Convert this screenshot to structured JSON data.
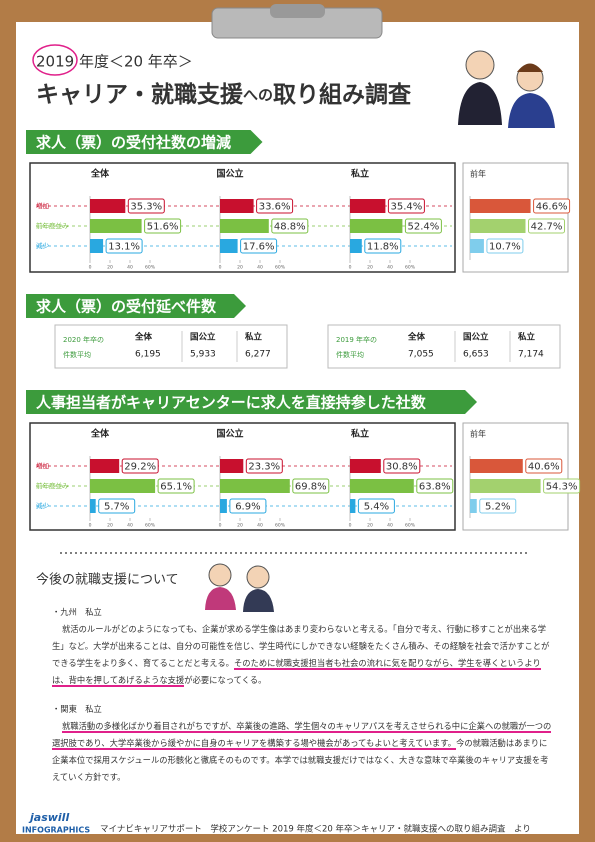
{
  "header": {
    "year": "2019 年度＜20 年卒＞",
    "title_parts": [
      "キャリア・就職支援",
      "への",
      "取り組み調査"
    ]
  },
  "section1": {
    "type": "bar",
    "title": "求人（票）の受付社数の増減",
    "row_labels": [
      "増加",
      "前年度並み",
      "減少"
    ],
    "colors": [
      "#c8102e",
      "#7bc043",
      "#29a8e0"
    ],
    "xlim": [
      0,
      60
    ],
    "xticks": [
      0,
      20,
      40,
      {
        "value": 60,
        "label": "60%"
      }
    ],
    "groups": [
      {
        "name": "全体",
        "values": [
          35.3,
          51.6,
          13.1
        ],
        "value_labels": [
          "35.3%",
          "51.6%",
          "13.1%"
        ]
      },
      {
        "name": "国公立",
        "values": [
          33.6,
          48.8,
          17.6
        ],
        "value_labels": [
          "33.6%",
          "48.8%",
          "17.6%"
        ]
      },
      {
        "name": "私立",
        "values": [
          35.4,
          52.4,
          11.8
        ],
        "value_labels": [
          "35.4%",
          "52.4%",
          "11.8%"
        ]
      }
    ],
    "previous": {
      "name": "前年",
      "colors": [
        "#d9573a",
        "#a3d16e",
        "#7fcdec"
      ],
      "values": [
        46.6,
        42.7,
        10.7
      ],
      "value_labels": [
        "46.6%",
        "42.7%",
        "10.7%"
      ]
    }
  },
  "section2": {
    "title": "求人（票）の受付延べ件数",
    "tables": [
      {
        "label": [
          "2020 年卒の",
          "件数平均"
        ],
        "columns": [
          "全体",
          "国公立",
          "私立"
        ],
        "cells": [
          "6,195",
          "5,933",
          "6,277"
        ]
      },
      {
        "label": [
          "2019 年卒の",
          "件数平均"
        ],
        "columns": [
          "全体",
          "国公立",
          "私立"
        ],
        "cells": [
          "7,055",
          "6,653",
          "7,174"
        ]
      }
    ]
  },
  "section3": {
    "type": "bar",
    "title": "人事担当者がキャリアセンターに求人を直接持参した社数",
    "row_labels": [
      "増加",
      "前年度並み",
      "減少"
    ],
    "colors": [
      "#c8102e",
      "#7bc043",
      "#29a8e0"
    ],
    "xlim": [
      0,
      60
    ],
    "xticks": [
      0,
      20,
      40,
      {
        "value": 60,
        "label": "60%"
      }
    ],
    "groups": [
      {
        "name": "全体",
        "values": [
          29.2,
          65.1,
          5.7
        ],
        "value_labels": [
          "29.2%",
          "65.1%",
          "5.7%"
        ]
      },
      {
        "name": "国公立",
        "values": [
          23.3,
          69.8,
          6.9
        ],
        "value_labels": [
          "23.3%",
          "69.8%",
          "6.9%"
        ]
      },
      {
        "name": "私立",
        "values": [
          30.8,
          63.8,
          5.4
        ],
        "value_labels": [
          "30.8%",
          "63.8%",
          "5.4%"
        ]
      }
    ],
    "previous": {
      "name": "前年",
      "colors": [
        "#d9573a",
        "#a3d16e",
        "#7fcdec"
      ],
      "values": [
        40.6,
        54.3,
        5.2
      ],
      "value_labels": [
        "40.6%",
        "54.3%",
        "5.2%"
      ]
    }
  },
  "section4": {
    "title": "今後の就職支援について",
    "comments": [
      {
        "heading": "・九州　私立",
        "segments": [
          {
            "text": "就活のルールがどのようになっても、企業が求める学生像はあまり変わらないと考える。「自分で考え、行動に移すことが出来る学生」など。大学が出来ることは、自分の可能性を信じ、学生時代にしかできない経験をたくさん積み、その経験を社会で活かすことができる学生をより多く、育てることだと考える。",
            "highlight": false
          },
          {
            "text": "そのために就職支援担当者も社会の流れに気を配りながら、学生を導くというよりは、背中を押してあげるような支援",
            "highlight": true
          },
          {
            "text": "が必要になってくる。",
            "highlight": false
          }
        ]
      },
      {
        "heading": "・関東　私立",
        "segments": [
          {
            "text": "就職活動の多様化ばかり着目されがちですが、卒業後の進路、学生個々のキャリアパスを考えさせられる中に企業への就職が一つの選択肢であり、大学卒業後から緩やかに自身のキャリアを構築する場や機会があってもよいと考えています。",
            "highlight": true
          },
          {
            "text": "今の就職活動はあまりに企業本位で採用スケジュールの形骸化と徹底そのものです。本学では就職支援だけではなく、大きな意味で卒業後のキャリア支援を考えていく方針です。",
            "highlight": false
          }
        ]
      }
    ]
  },
  "footer": {
    "brand": "jaswill",
    "brand_sub": "INFOGRAPHICS",
    "source": "マイナビキャリアサポート　学校アンケート 2019 年度＜20 年卒＞キャリア・就職支援への取り組み調査　より"
  }
}
